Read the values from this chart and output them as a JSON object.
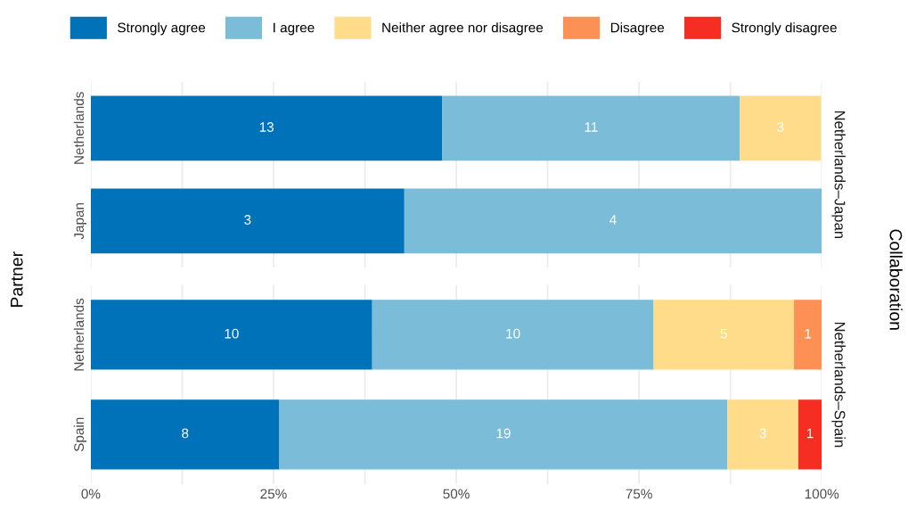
{
  "chart_data": [
    {
      "type": "bar",
      "orientation": "horizontal",
      "stacked": true,
      "y2label": "Netherlands–Japan",
      "ylabel": "Partner",
      "categories": [
        "Netherlands",
        "Japan"
      ],
      "series": [
        {
          "name": "Strongly agree",
          "color": "#0072b9",
          "values": [
            48.1,
            42.9
          ]
        },
        {
          "name": "I agree",
          "color": "#7bbcd9",
          "values": [
            40.7,
            57.1
          ]
        },
        {
          "name": "Neither agree nor disagree",
          "color": "#fedc8a",
          "values": [
            11.1,
            null
          ]
        },
        {
          "name": "Disagree",
          "color": "#fd9155",
          "values": [
            null,
            null
          ]
        },
        {
          "name": "Strongly disagree",
          "color": "#f52d22",
          "values": [
            null,
            null
          ]
        }
      ],
      "annotations": [
        "Collaboration",
        "13",
        "11",
        "3",
        "3",
        "4"
      ],
      "xlim": [
        0,
        100
      ],
      "xticks": [
        {
          "value": 0,
          "label": null
        },
        {
          "value": 12.5,
          "label": null
        },
        {
          "value": 25,
          "label": null
        },
        {
          "value": 37.5,
          "label": null
        },
        {
          "value": 50,
          "label": null
        },
        {
          "value": 62.5,
          "label": null
        },
        {
          "value": 75,
          "label": null
        },
        {
          "value": 87.5,
          "label": null
        },
        {
          "value": 100,
          "label": null
        }
      ],
      "tick_labels": "y",
      "grid": true,
      "legend": "top"
    },
    {
      "type": "bar",
      "orientation": "horizontal",
      "stacked": true,
      "y2label": "Netherlands–Spain",
      "categories": [
        "Netherlands",
        "Spain"
      ],
      "series": [
        {
          "color": "#0072b9",
          "values": [
            38.5,
            25.8
          ]
        },
        {
          "color": "#7bbcd9",
          "values": [
            38.5,
            61.3
          ]
        },
        {
          "color": "#fedc8a",
          "values": [
            19.2,
            9.7
          ]
        },
        {
          "color": "#fd9155",
          "values": [
            3.8,
            null
          ]
        },
        {
          "color": "#f52d22",
          "values": [
            null,
            3.2
          ]
        }
      ],
      "annotations": [
        "10",
        "10",
        "5",
        "1",
        "8",
        "19",
        "3",
        "1"
      ],
      "xlim": [
        0,
        100
      ],
      "xticks": [
        {
          "value": 0,
          "label": "0%"
        },
        {
          "value": 12.5,
          "label": null
        },
        {
          "value": 25,
          "label": "25%"
        },
        {
          "value": 37.5,
          "label": null
        },
        {
          "value": 50,
          "label": "50%"
        },
        {
          "value": 62.5,
          "label": null
        },
        {
          "value": 75,
          "label": "75%"
        },
        {
          "value": 87.5,
          "label": null
        },
        {
          "value": 100,
          "label": "100%"
        }
      ],
      "grid": true
    }
  ]
}
